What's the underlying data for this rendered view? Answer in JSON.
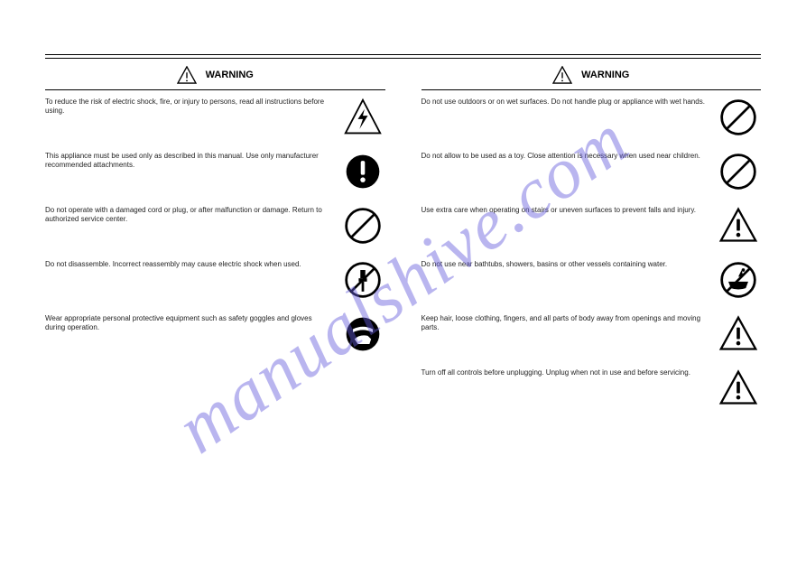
{
  "watermark": "manualshive.com",
  "left": {
    "header": "WARNING",
    "items": [
      {
        "text": "To reduce the risk of electric shock, fire, or injury to persons, read all instructions before using.",
        "icon": "bolt-triangle"
      },
      {
        "text": "This appliance must be used only as described in this manual. Use only manufacturer recommended attachments.",
        "icon": "exclaim-circle-filled"
      },
      {
        "text": "Do not operate with a damaged cord or plug, or after malfunction or damage. Return to authorized service center.",
        "icon": "prohibit"
      },
      {
        "text": "Do not disassemble. Incorrect reassembly may cause electric shock when used.",
        "icon": "no-disassemble"
      },
      {
        "text": "Wear appropriate personal protective equipment such as safety goggles and gloves during operation.",
        "icon": "ppe"
      }
    ]
  },
  "right": {
    "header": "WARNING",
    "items": [
      {
        "text": "Do not use outdoors or on wet surfaces. Do not handle plug or appliance with wet hands.",
        "icon": "prohibit"
      },
      {
        "text": "Do not allow to be used as a toy. Close attention is necessary when used near children.",
        "icon": "prohibit"
      },
      {
        "text": "Use extra care when operating on stairs or uneven surfaces to prevent falls and injury.",
        "icon": "warn-triangle"
      },
      {
        "text": "Do not use near bathtubs, showers, basins or other vessels containing water.",
        "icon": "no-bath"
      },
      {
        "text": "Keep hair, loose clothing, fingers, and all parts of body away from openings and moving parts.",
        "icon": "warn-triangle"
      },
      {
        "text": "Turn off all controls before unplugging. Unplug when not in use and before servicing.",
        "icon": "warn-triangle"
      }
    ]
  },
  "colors": {
    "stroke": "#000000",
    "bg": "#ffffff",
    "watermark": "rgba(100,90,220,0.45)"
  }
}
